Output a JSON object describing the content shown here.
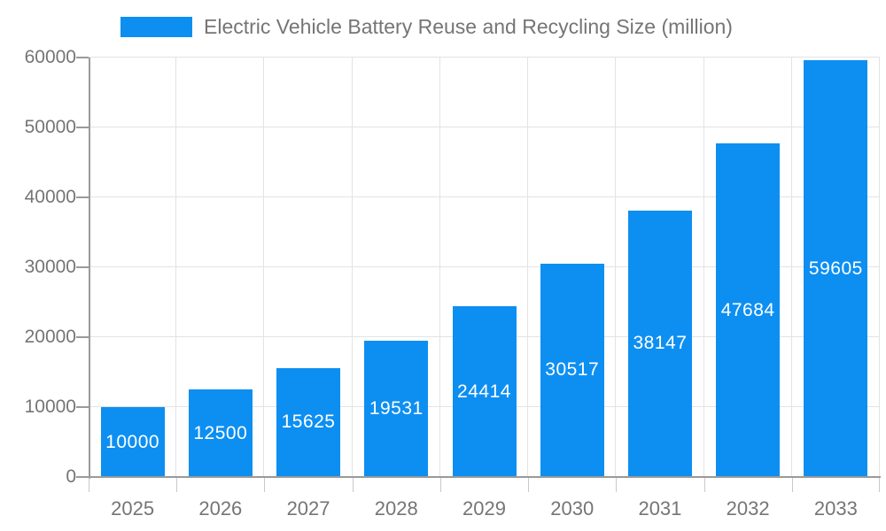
{
  "legend": {
    "label": "Electric Vehicle Battery Reuse and Recycling Size (million)"
  },
  "chart_data": {
    "type": "bar",
    "title": "Electric Vehicle Battery Reuse and Recycling Size (million)",
    "categories": [
      "2025",
      "2026",
      "2027",
      "2028",
      "2029",
      "2030",
      "2031",
      "2032",
      "2033"
    ],
    "values": [
      10000,
      12500,
      15625,
      19531,
      24414,
      30517,
      38147,
      47684,
      59605
    ],
    "series": [
      {
        "name": "Electric Vehicle Battery Reuse and Recycling Size (million)",
        "values": [
          10000,
          12500,
          15625,
          19531,
          24414,
          30517,
          38147,
          47684,
          59605
        ]
      }
    ],
    "xlabel": "",
    "ylabel": "",
    "ylim": [
      0,
      60000
    ],
    "yticks": [
      0,
      10000,
      20000,
      30000,
      40000,
      50000,
      60000
    ],
    "grid": true,
    "legend_position": "top",
    "bar_labels_visible": true
  },
  "colors": {
    "bar": "#0d8ff2",
    "bar_label": "#ffffff",
    "tick_text": "#757575",
    "grid_line": "#e3e3e3",
    "axis_line": "#9a9a9a",
    "background": "#ffffff"
  }
}
